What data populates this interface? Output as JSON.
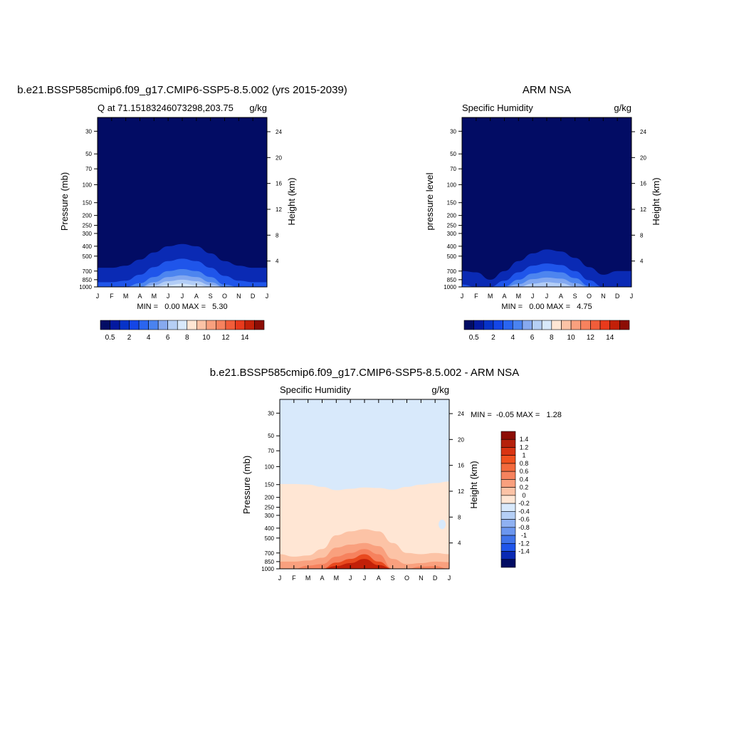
{
  "panels": [
    {
      "id": "model",
      "title": "b.e21.BSSP585cmip6.f09_g17.CMIP6-SSP5-8.5.002 (yrs 2015-2039)",
      "left_label": "Q at 71.15183246073298,203.75",
      "right_label": "g/kg",
      "ylabel": "Pressure (mb)",
      "ylabel_right": "Height (km)",
      "stats": "MIN =   0.00 MAX =   5.30"
    },
    {
      "id": "obs",
      "title": "ARM NSA",
      "left_label": "Specific Humidity",
      "right_label": "g/kg",
      "ylabel": "pressure level",
      "ylabel_right": "Height (km)",
      "stats": "MIN =   0.00 MAX =   4.75"
    },
    {
      "id": "diff",
      "title": "b.e21.BSSP585cmip6.f09_g17.CMIP6-SSP5-8.5.002 - ARM NSA",
      "left_label": "Specific Humidity",
      "right_label": "g/kg",
      "ylabel": "Pressure (mb)",
      "ylabel_right": "Height (km)",
      "stats": "MIN =  -0.05 MAX =   1.28"
    }
  ],
  "chart_data": [
    {
      "type": "heatmap",
      "panel": "model",
      "x_ticks": [
        "J",
        "F",
        "M",
        "A",
        "M",
        "J",
        "J",
        "A",
        "S",
        "O",
        "N",
        "D",
        "J"
      ],
      "y_ticks_pressure": [
        30,
        50,
        70,
        100,
        150,
        200,
        250,
        300,
        400,
        500,
        700,
        850,
        1000
      ],
      "y_ticks_height_km": [
        4,
        8,
        12,
        16,
        20,
        24
      ],
      "ylim_pressure": [
        1000,
        22
      ],
      "log_pressure_axis": true,
      "contour_top_pressure": [
        {
          "level": 0.5,
          "pressure": [
            650,
            650,
            620,
            540,
            460,
            400,
            380,
            400,
            470,
            560,
            620,
            650,
            650
          ]
        },
        {
          "level": 1,
          "pressure": [
            900,
            900,
            870,
            760,
            640,
            560,
            530,
            560,
            650,
            780,
            870,
            900,
            900
          ]
        },
        {
          "level": 2,
          "pressure": [
            1000,
            1000,
            1000,
            920,
            800,
            700,
            670,
            700,
            800,
            950,
            1000,
            1000,
            1000
          ]
        },
        {
          "level": 3,
          "pressure": [
            1000,
            1000,
            1000,
            1000,
            900,
            800,
            770,
            800,
            900,
            1000,
            1000,
            1000,
            1000
          ]
        },
        {
          "level": 4,
          "pressure": [
            1000,
            1000,
            1000,
            1000,
            960,
            880,
            850,
            880,
            960,
            1000,
            1000,
            1000,
            1000
          ]
        },
        {
          "level": 5,
          "pressure": [
            1000,
            1000,
            1000,
            1000,
            1000,
            960,
            930,
            960,
            1000,
            1000,
            1000,
            1000,
            1000
          ]
        }
      ],
      "colorbar": {
        "labels": [
          "0.5",
          "2",
          "4",
          "6",
          "8",
          "10",
          "12",
          "14"
        ]
      }
    },
    {
      "type": "heatmap",
      "panel": "obs",
      "x_ticks": [
        "J",
        "F",
        "M",
        "A",
        "M",
        "J",
        "J",
        "A",
        "S",
        "O",
        "N",
        "D",
        "J"
      ],
      "y_ticks_pressure": [
        30,
        50,
        70,
        100,
        150,
        200,
        250,
        300,
        400,
        500,
        700,
        850,
        1000
      ],
      "y_ticks_height_km": [
        4,
        8,
        12,
        16,
        20,
        24
      ],
      "ylim_pressure": [
        1000,
        22
      ],
      "log_pressure_axis": true,
      "contour_top_pressure": [
        {
          "level": 0.5,
          "pressure": [
            700,
            720,
            850,
            700,
            560,
            470,
            430,
            450,
            520,
            640,
            760,
            700,
            700
          ]
        },
        {
          "level": 1,
          "pressure": [
            950,
            1000,
            1000,
            870,
            720,
            620,
            590,
            610,
            700,
            860,
            1000,
            1000,
            1000
          ]
        },
        {
          "level": 2,
          "pressure": [
            1000,
            1000,
            1000,
            990,
            850,
            740,
            700,
            720,
            820,
            980,
            1000,
            1000,
            1000
          ]
        },
        {
          "level": 3,
          "pressure": [
            1000,
            1000,
            1000,
            1000,
            940,
            840,
            810,
            830,
            920,
            1000,
            1000,
            1000,
            1000
          ]
        },
        {
          "level": 4,
          "pressure": [
            1000,
            1000,
            1000,
            1000,
            1000,
            930,
            900,
            920,
            990,
            1000,
            1000,
            1000,
            1000
          ]
        }
      ],
      "colorbar": {
        "labels": [
          "0.5",
          "2",
          "4",
          "6",
          "8",
          "10",
          "12",
          "14"
        ]
      }
    },
    {
      "type": "heatmap",
      "panel": "diff",
      "x_ticks": [
        "J",
        "F",
        "M",
        "A",
        "M",
        "J",
        "J",
        "A",
        "S",
        "O",
        "N",
        "D",
        "J"
      ],
      "y_ticks_pressure": [
        30,
        50,
        70,
        100,
        150,
        200,
        250,
        300,
        400,
        500,
        700,
        850,
        1000
      ],
      "y_ticks_height_km": [
        4,
        8,
        12,
        16,
        20,
        24
      ],
      "ylim_pressure": [
        1000,
        22
      ],
      "log_pressure_axis": true,
      "contour_top_pressure": [
        {
          "level": 0.0,
          "pressure": [
            148,
            148,
            150,
            158,
            170,
            165,
            160,
            162,
            168,
            158,
            150,
            145,
            140
          ]
        },
        {
          "level": 0.2,
          "pressure": [
            720,
            760,
            740,
            640,
            470,
            430,
            410,
            430,
            560,
            700,
            720,
            700,
            720
          ]
        },
        {
          "level": 0.4,
          "pressure": [
            850,
            850,
            830,
            780,
            620,
            580,
            560,
            600,
            800,
            900,
            880,
            850,
            860
          ]
        },
        {
          "level": 0.6,
          "pressure": [
            1000,
            1000,
            930,
            900,
            760,
            700,
            640,
            720,
            1000,
            1000,
            950,
            940,
            1000
          ]
        },
        {
          "level": 0.8,
          "pressure": [
            1000,
            1000,
            1000,
            1000,
            870,
            800,
            720,
            850,
            1000,
            1000,
            1000,
            1000,
            1000
          ]
        },
        {
          "level": 1.0,
          "pressure": [
            1000,
            1000,
            1000,
            1000,
            940,
            880,
            800,
            920,
            1000,
            1000,
            1000,
            1000,
            1000
          ]
        }
      ],
      "negative_patch": {
        "month_index": 11.5,
        "pressure_top": 330,
        "pressure_bottom": 410
      },
      "colorbar": {
        "labels": [
          "1.4",
          "1.2",
          "1",
          "0.8",
          "0.6",
          "0.4",
          "0.2",
          "0",
          "-0.2",
          "-0.4",
          "-0.6",
          "-0.8",
          "-1",
          "-1.2",
          "-1.4"
        ]
      }
    }
  ],
  "colors": {
    "seq_palette": [
      "#020c64",
      "#0319a0",
      "#0633c8",
      "#1446e6",
      "#2a65f0",
      "#4a83f0",
      "#86a9ef",
      "#b5cff5",
      "#d8e9fb",
      "#ffe6d4",
      "#fcc3a6",
      "#f9a07e",
      "#f6825e",
      "#f15d3a",
      "#e83a1c",
      "#c22008",
      "#8c0d05"
    ],
    "seq_fills": [
      "#020c64",
      "#0a2ab4",
      "#1f55ea",
      "#4d85ef",
      "#82a8f0",
      "#b2cdf6",
      "#d6e7fb"
    ],
    "diff_palette": [
      "#8c0d05",
      "#b5210b",
      "#d93412",
      "#f0511f",
      "#f36a3d",
      "#f6825e",
      "#f9a07e",
      "#fcc3a6",
      "#ffe6d4",
      "#d8e9fb",
      "#b5cff5",
      "#8fb1f2",
      "#6b96ef",
      "#3f73ea",
      "#1f55ea",
      "#0a2ab4",
      "#020c64"
    ],
    "diff_fills": [
      "#d8e9fb",
      "#ffe6d4",
      "#fcc3a6",
      "#f9a07e",
      "#f6825e",
      "#e8491e",
      "#c22008"
    ]
  }
}
